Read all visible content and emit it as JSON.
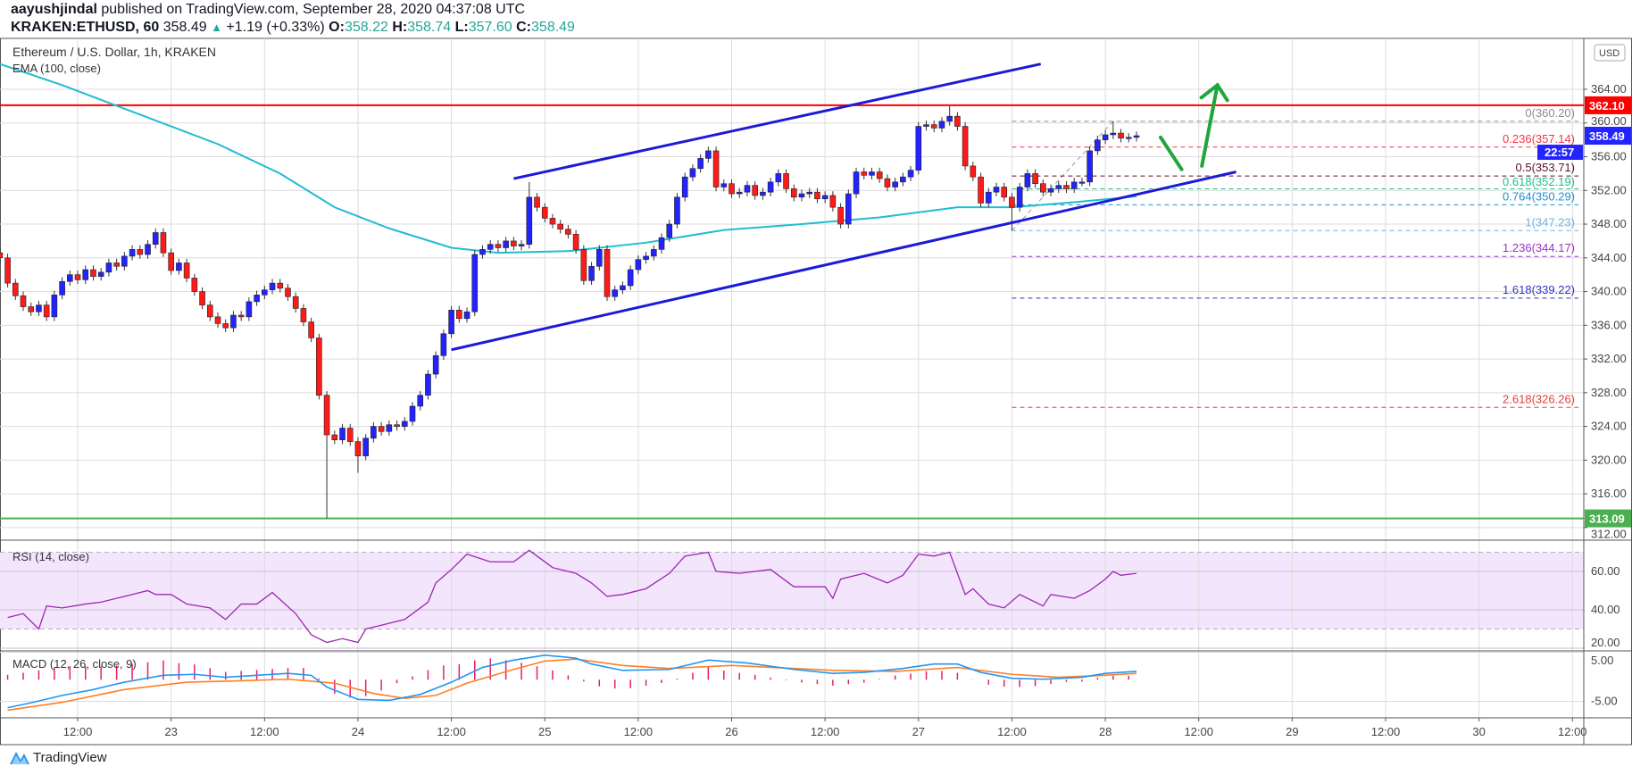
{
  "header": {
    "author": "aayushjindal",
    "published": "published on TradingView.com, September 28, 2020 04:37:08 UTC",
    "symbol": "KRAKEN:ETHUSD, 60",
    "last": "358.49",
    "change": "+1.19 (+0.33%)",
    "o_label": "O:",
    "o": "358.22",
    "h_label": "H:",
    "h": "358.74",
    "l_label": "L:",
    "l": "357.60",
    "c_label": "C:",
    "c": "358.49"
  },
  "legend": {
    "title": "Ethereum / U.S. Dollar, 1h, KRAKEN",
    "ema": "EMA (100, close)",
    "rsi": "RSI (14, close)",
    "macd": "MACD (12, 26, close, 9)"
  },
  "logo_text": "TradingView",
  "chart_data": {
    "type": "candlestick",
    "currency": "USD",
    "colors": {
      "up": "#2323ff",
      "down": "#ff1a1a",
      "ema": "#1fbcd2",
      "rsi": "#9c27b0",
      "macd": "#2196f3",
      "signal": "#ff7f24",
      "histogram": "#e91e63",
      "resistance": "#ff0000",
      "support": "#4caf50",
      "channel": "#1a1ad8",
      "arrow": "#1ea63a"
    },
    "price_ticks": [
      "364.00",
      "360.00",
      "356.00",
      "352.00",
      "348.00",
      "344.00",
      "340.00",
      "336.00",
      "332.00",
      "328.00",
      "324.00",
      "320.00",
      "316.00",
      "312.00"
    ],
    "ylim": [
      311,
      368
    ],
    "time_ticks": [
      {
        "t": "2020-09-22 12:00",
        "label": "12:00"
      },
      {
        "t": "2020-09-23 00:00",
        "label": "23"
      },
      {
        "t": "2020-09-23 12:00",
        "label": "12:00"
      },
      {
        "t": "2020-09-24 00:00",
        "label": "24"
      },
      {
        "t": "2020-09-24 12:00",
        "label": "12:00"
      },
      {
        "t": "2020-09-25 00:00",
        "label": "25"
      },
      {
        "t": "2020-09-25 12:00",
        "label": "12:00"
      },
      {
        "t": "2020-09-26 00:00",
        "label": "26"
      },
      {
        "t": "2020-09-26 12:00",
        "label": "12:00"
      },
      {
        "t": "2020-09-27 00:00",
        "label": "27"
      },
      {
        "t": "2020-09-27 12:00",
        "label": "12:00"
      },
      {
        "t": "2020-09-28 00:00",
        "label": "28"
      },
      {
        "t": "2020-09-28 12:00",
        "label": "12:00"
      },
      {
        "t": "2020-09-29 00:00",
        "label": "29"
      },
      {
        "t": "2020-09-29 12:00",
        "label": "12:00"
      },
      {
        "t": "2020-09-30 00:00",
        "label": "30"
      },
      {
        "t": "2020-09-30 12:00",
        "label": "12:00"
      }
    ],
    "candles": {
      "start": "2020-09-22 01:00",
      "interval_hours": 1,
      "close": [
        344.6,
        344.0,
        341.0,
        339.5,
        338.2,
        337.6,
        338.4,
        337.0,
        339.6,
        341.2,
        342.0,
        341.4,
        342.6,
        341.8,
        342.3,
        343.4,
        343.0,
        344.2,
        345.0,
        344.4,
        345.6,
        347.0,
        344.6,
        342.5,
        343.4,
        341.6,
        340.0,
        338.4,
        337.0,
        336.2,
        335.7,
        337.2,
        337.0,
        338.8,
        339.6,
        340.2,
        341.0,
        340.4,
        339.4,
        338.0,
        336.4,
        334.5,
        327.7,
        323.0,
        322.4,
        323.8,
        322.2,
        320.5,
        322.6,
        324.0,
        323.4,
        324.2,
        324.0,
        324.6,
        326.4,
        327.7,
        330.2,
        332.4,
        335.0,
        337.8,
        336.8,
        337.6,
        344.4,
        345.0,
        345.6,
        345.2,
        346.0,
        345.4,
        345.6,
        351.2,
        350.0,
        348.7,
        348.0,
        347.4,
        346.8,
        345.0,
        341.3,
        343.0,
        345.0,
        339.4,
        340.2,
        340.7,
        342.6,
        343.8,
        344.2,
        345.0,
        346.4,
        348.0,
        351.2,
        353.6,
        354.6,
        355.8,
        356.7,
        352.4,
        352.8,
        351.6,
        351.8,
        352.6,
        351.4,
        351.8,
        353.0,
        354.0,
        352.2,
        351.2,
        351.6,
        351.8,
        351.0,
        351.4,
        350.0,
        348.0,
        351.6,
        354.2,
        353.8,
        354.2,
        353.4,
        352.4,
        353.0,
        353.6,
        354.4,
        359.6,
        359.8,
        359.4,
        360.2,
        360.8,
        359.6,
        354.9,
        353.6,
        350.5,
        351.8,
        352.4,
        351.2,
        350.0,
        352.4,
        354.0,
        352.8,
        351.8,
        352.2,
        352.6,
        352.2,
        353.0,
        353.0,
        356.7,
        358.0,
        358.6,
        358.8,
        358.2,
        358.3,
        358.49
      ],
      "wick_extremes": [
        {
          "t": "2020-09-23 20:00",
          "low": 313.1
        },
        {
          "t": "2020-09-24 00:00",
          "low": 318.5
        },
        {
          "t": "2020-09-24 22:00",
          "high": 353.0
        },
        {
          "t": "2020-09-27 04:00",
          "high": 362.0
        },
        {
          "t": "2020-09-27 12:00",
          "low": 347.23
        },
        {
          "t": "2020-09-28 01:00",
          "high": 360.2
        }
      ]
    },
    "ema100": [
      {
        "t": "2020-09-22 02:00",
        "v": 367.0
      },
      {
        "t": "2020-09-22 10:00",
        "v": 364.5
      },
      {
        "t": "2020-09-22 20:00",
        "v": 361.0
      },
      {
        "t": "2020-09-23 06:00",
        "v": 357.5
      },
      {
        "t": "2020-09-23 14:00",
        "v": 354.0
      },
      {
        "t": "2020-09-23 21:00",
        "v": 350.0
      },
      {
        "t": "2020-09-24 04:00",
        "v": 347.5
      },
      {
        "t": "2020-09-24 12:00",
        "v": 345.2
      },
      {
        "t": "2020-09-24 18:00",
        "v": 344.6
      },
      {
        "t": "2020-09-25 03:00",
        "v": 344.8
      },
      {
        "t": "2020-09-25 13:00",
        "v": 345.8
      },
      {
        "t": "2020-09-25 23:00",
        "v": 347.3
      },
      {
        "t": "2020-09-26 09:00",
        "v": 348.0
      },
      {
        "t": "2020-09-26 19:00",
        "v": 348.8
      },
      {
        "t": "2020-09-27 05:00",
        "v": 350.0
      },
      {
        "t": "2020-09-27 12:00",
        "v": 350.0
      },
      {
        "t": "2020-09-27 20:00",
        "v": 350.6
      },
      {
        "t": "2020-09-28 04:00",
        "v": 351.3
      }
    ],
    "horizontal_levels": [
      {
        "name": "resistance",
        "price": "362.10"
      },
      {
        "name": "support",
        "price": "313.09"
      }
    ],
    "last_price_badge": {
      "price": "358.49",
      "countdown": "22:57"
    },
    "channel": {
      "upper": [
        {
          "t": "2020-09-24 20:00",
          "v": 353.4
        },
        {
          "t": "2020-09-27 15:42",
          "v": 367.0
        }
      ],
      "lower": [
        {
          "t": "2020-09-24 12:00",
          "v": 333.1
        },
        {
          "t": "2020-09-28 16:48",
          "v": 354.2
        }
      ]
    },
    "arrows": {
      "down": [
        {
          "t": "2020-09-28 07:06",
          "v": 358.3
        },
        {
          "t": "2020-09-28 09:48",
          "v": 354.5
        }
      ],
      "up": [
        {
          "t": "2020-09-28 12:24",
          "v": 354.9
        },
        {
          "t": "2020-09-28 14:24",
          "v": 364.5
        }
      ]
    },
    "fibonacci": {
      "start": {
        "t": "2020-09-27 12:00",
        "v": 347.23
      },
      "end": {
        "t": "2020-09-28 01:00",
        "v": 360.2
      },
      "levels": [
        {
          "label": "0(360.20)",
          "price": 360.2,
          "color": "#8a8d96"
        },
        {
          "label": "0.236(357.14)",
          "price": 357.14,
          "color": "#f23645"
        },
        {
          "label": "0.5(353.71)",
          "price": 353.71,
          "color": "#5d1020"
        },
        {
          "label": "0.618(352.19)",
          "price": 352.19,
          "color": "#20c08a"
        },
        {
          "label": "0.764(350.29)",
          "price": 350.29,
          "color": "#1e90d0"
        },
        {
          "label": "1(347.23)",
          "price": 347.23,
          "color": "#6ab4e8"
        },
        {
          "label": "1.236(344.17)",
          "price": 344.17,
          "color": "#a030c8"
        },
        {
          "label": "1.618(339.22)",
          "price": 339.22,
          "color": "#3232c8"
        },
        {
          "label": "2.618(326.26)",
          "price": 326.26,
          "color": "#e04040"
        }
      ]
    },
    "rsi": {
      "ticks": [
        "60.00",
        "40.00",
        "20.00"
      ],
      "band": [
        30,
        70
      ],
      "points": [
        {
          "t": "2020-09-22 03:00",
          "v": 36
        },
        {
          "t": "2020-09-22 05:00",
          "v": 38
        },
        {
          "t": "2020-09-22 07:00",
          "v": 30
        },
        {
          "t": "2020-09-22 08:00",
          "v": 42
        },
        {
          "t": "2020-09-22 10:00",
          "v": 41
        },
        {
          "t": "2020-09-22 13:00",
          "v": 43
        },
        {
          "t": "2020-09-22 15:00",
          "v": 44
        },
        {
          "t": "2020-09-22 18:00",
          "v": 47
        },
        {
          "t": "2020-09-22 21:00",
          "v": 50
        },
        {
          "t": "2020-09-22 22:00",
          "v": 48
        },
        {
          "t": "2020-09-23 00:00",
          "v": 48
        },
        {
          "t": "2020-09-23 02:00",
          "v": 43
        },
        {
          "t": "2020-09-23 05:00",
          "v": 41
        },
        {
          "t": "2020-09-23 07:00",
          "v": 35
        },
        {
          "t": "2020-09-23 09:00",
          "v": 43
        },
        {
          "t": "2020-09-23 11:00",
          "v": 43
        },
        {
          "t": "2020-09-23 13:00",
          "v": 49
        },
        {
          "t": "2020-09-23 16:00",
          "v": 38
        },
        {
          "t": "2020-09-23 18:00",
          "v": 27
        },
        {
          "t": "2020-09-23 20:00",
          "v": 23
        },
        {
          "t": "2020-09-23 22:00",
          "v": 25
        },
        {
          "t": "2020-09-24 00:00",
          "v": 23
        },
        {
          "t": "2020-09-24 01:00",
          "v": 30
        },
        {
          "t": "2020-09-24 03:00",
          "v": 32
        },
        {
          "t": "2020-09-24 06:00",
          "v": 35
        },
        {
          "t": "2020-09-24 09:00",
          "v": 44
        },
        {
          "t": "2020-09-24 10:00",
          "v": 54
        },
        {
          "t": "2020-09-24 12:00",
          "v": 61
        },
        {
          "t": "2020-09-24 14:00",
          "v": 69
        },
        {
          "t": "2020-09-24 17:00",
          "v": 65
        },
        {
          "t": "2020-09-24 20:00",
          "v": 65
        },
        {
          "t": "2020-09-24 22:00",
          "v": 71
        },
        {
          "t": "2020-09-25 01:00",
          "v": 62
        },
        {
          "t": "2020-09-25 04:00",
          "v": 59
        },
        {
          "t": "2020-09-25 06:00",
          "v": 54
        },
        {
          "t": "2020-09-25 08:00",
          "v": 47
        },
        {
          "t": "2020-09-25 10:00",
          "v": 48
        },
        {
          "t": "2020-09-25 13:00",
          "v": 51
        },
        {
          "t": "2020-09-25 16:00",
          "v": 59
        },
        {
          "t": "2020-09-25 18:00",
          "v": 68
        },
        {
          "t": "2020-09-25 21:00",
          "v": 70
        },
        {
          "t": "2020-09-25 22:00",
          "v": 60
        },
        {
          "t": "2020-09-26 01:00",
          "v": 59
        },
        {
          "t": "2020-09-26 05:00",
          "v": 61
        },
        {
          "t": "2020-09-26 08:00",
          "v": 52
        },
        {
          "t": "2020-09-26 12:00",
          "v": 52
        },
        {
          "t": "2020-09-26 13:00",
          "v": 46
        },
        {
          "t": "2020-09-26 14:00",
          "v": 56
        },
        {
          "t": "2020-09-26 17:00",
          "v": 59
        },
        {
          "t": "2020-09-26 20:00",
          "v": 54
        },
        {
          "t": "2020-09-26 22:00",
          "v": 58
        },
        {
          "t": "2020-09-27 00:00",
          "v": 69
        },
        {
          "t": "2020-09-27 02:00",
          "v": 68
        },
        {
          "t": "2020-09-27 04:00",
          "v": 70
        },
        {
          "t": "2020-09-27 06:00",
          "v": 48
        },
        {
          "t": "2020-09-27 07:00",
          "v": 51
        },
        {
          "t": "2020-09-27 09:00",
          "v": 43
        },
        {
          "t": "2020-09-27 11:00",
          "v": 41
        },
        {
          "t": "2020-09-27 13:00",
          "v": 48
        },
        {
          "t": "2020-09-27 16:00",
          "v": 42
        },
        {
          "t": "2020-09-27 17:00",
          "v": 48
        },
        {
          "t": "2020-09-27 20:00",
          "v": 46
        },
        {
          "t": "2020-09-27 22:00",
          "v": 50
        },
        {
          "t": "2020-09-28 00:00",
          "v": 56
        },
        {
          "t": "2020-09-28 01:00",
          "v": 60
        },
        {
          "t": "2020-09-28 02:00",
          "v": 58
        },
        {
          "t": "2020-09-28 04:00",
          "v": 59
        }
      ]
    },
    "macd": {
      "ticks": [
        "5.00",
        "-5.00"
      ],
      "macd_line": [
        {
          "t": "2020-09-22 03:00",
          "v": -6.3
        },
        {
          "t": "2020-09-22 06:00",
          "v": -5.3
        },
        {
          "t": "2020-09-22 10:00",
          "v": -3.8
        },
        {
          "t": "2020-09-22 14:00",
          "v": -2.6
        },
        {
          "t": "2020-09-22 18:00",
          "v": -1.1
        },
        {
          "t": "2020-09-22 23:00",
          "v": 0.3
        },
        {
          "t": "2020-09-23 03:00",
          "v": 0.5
        },
        {
          "t": "2020-09-23 07:00",
          "v": -0.1
        },
        {
          "t": "2020-09-23 11:00",
          "v": 0.3
        },
        {
          "t": "2020-09-23 15:00",
          "v": 0.7
        },
        {
          "t": "2020-09-23 18:00",
          "v": 0.3
        },
        {
          "t": "2020-09-23 20:00",
          "v": -2.1
        },
        {
          "t": "2020-09-24 00:00",
          "v": -4.6
        },
        {
          "t": "2020-09-24 04:00",
          "v": -4.8
        },
        {
          "t": "2020-09-24 08:00",
          "v": -3.6
        },
        {
          "t": "2020-09-24 12:00",
          "v": -1.1
        },
        {
          "t": "2020-09-24 16:00",
          "v": 1.9
        },
        {
          "t": "2020-09-24 20:00",
          "v": 3.4
        },
        {
          "t": "2020-09-25 00:00",
          "v": 4.4
        },
        {
          "t": "2020-09-25 04:00",
          "v": 3.8
        },
        {
          "t": "2020-09-25 06:00",
          "v": 2.6
        },
        {
          "t": "2020-09-25 10:00",
          "v": 1.3
        },
        {
          "t": "2020-09-25 16:00",
          "v": 1.5
        },
        {
          "t": "2020-09-25 21:00",
          "v": 3.4
        },
        {
          "t": "2020-09-26 02:00",
          "v": 2.8
        },
        {
          "t": "2020-09-26 08:00",
          "v": 1.5
        },
        {
          "t": "2020-09-26 13:00",
          "v": 0.7
        },
        {
          "t": "2020-09-26 17:00",
          "v": 0.9
        },
        {
          "t": "2020-09-26 22:00",
          "v": 1.7
        },
        {
          "t": "2020-09-27 02:00",
          "v": 2.6
        },
        {
          "t": "2020-09-27 05:00",
          "v": 2.6
        },
        {
          "t": "2020-09-27 08:00",
          "v": 0.9
        },
        {
          "t": "2020-09-27 12:00",
          "v": -0.3
        },
        {
          "t": "2020-09-27 16:00",
          "v": -0.5
        },
        {
          "t": "2020-09-27 21:00",
          "v": -0.1
        },
        {
          "t": "2020-09-28 00:00",
          "v": 0.7
        },
        {
          "t": "2020-09-28 04:00",
          "v": 1.1
        }
      ],
      "signal_line": [
        {
          "t": "2020-09-22 03:00",
          "v": -6.8
        },
        {
          "t": "2020-09-22 10:00",
          "v": -5.2
        },
        {
          "t": "2020-09-22 18:00",
          "v": -2.6
        },
        {
          "t": "2020-09-23 02:00",
          "v": -1.1
        },
        {
          "t": "2020-09-23 07:00",
          "v": -0.9
        },
        {
          "t": "2020-09-23 15:00",
          "v": -0.5
        },
        {
          "t": "2020-09-23 21:00",
          "v": -1.3
        },
        {
          "t": "2020-09-24 02:00",
          "v": -3.4
        },
        {
          "t": "2020-09-24 06:00",
          "v": -4.4
        },
        {
          "t": "2020-09-24 10:00",
          "v": -3.8
        },
        {
          "t": "2020-09-24 14:00",
          "v": -1.3
        },
        {
          "t": "2020-09-24 20:00",
          "v": 1.5
        },
        {
          "t": "2020-09-25 00:00",
          "v": 3.2
        },
        {
          "t": "2020-09-25 04:00",
          "v": 3.6
        },
        {
          "t": "2020-09-25 10:00",
          "v": 2.3
        },
        {
          "t": "2020-09-25 16:00",
          "v": 1.7
        },
        {
          "t": "2020-09-26 00:00",
          "v": 2.3
        },
        {
          "t": "2020-09-26 08:00",
          "v": 1.7
        },
        {
          "t": "2020-09-26 13:00",
          "v": 1.3
        },
        {
          "t": "2020-09-26 21:00",
          "v": 1.1
        },
        {
          "t": "2020-09-27 05:00",
          "v": 1.9
        },
        {
          "t": "2020-09-27 12:00",
          "v": 0.5
        },
        {
          "t": "2020-09-27 18:00",
          "v": -0.1
        },
        {
          "t": "2020-09-28 00:00",
          "v": 0.3
        },
        {
          "t": "2020-09-28 04:00",
          "v": 0.7
        }
      ]
    }
  }
}
